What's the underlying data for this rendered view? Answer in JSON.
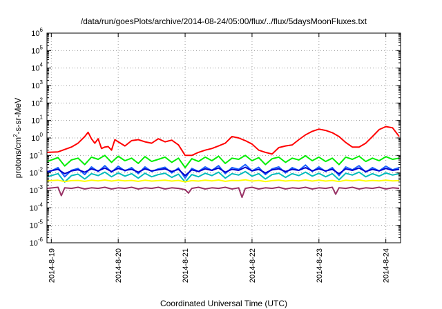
{
  "chart_data": {
    "type": "line",
    "title": "/data/run/goesPlots/archive/2014-08-24/05:00/flux/../flux/5daysMoonFluxes.txt",
    "xlabel": "Coordinated Universal Time (UTC)",
    "ylabel": "protons/cm2-s-sr-MeV",
    "ylabel_parts": {
      "before": "protons/cm",
      "sup": "2",
      "after": "-s-sr-MeV"
    },
    "yscale": "log",
    "ylim": [
      1e-06,
      1000000.0
    ],
    "xlim": [
      -0.065,
      5.22
    ],
    "grid": true,
    "x_ticks": [
      {
        "x": 0,
        "label": "2014-8-19"
      },
      {
        "x": 1,
        "label": "2014-8-20"
      },
      {
        "x": 2,
        "label": "2014-8-21"
      },
      {
        "x": 3,
        "label": "2014-8-22"
      },
      {
        "x": 4,
        "label": "2014-8-23"
      },
      {
        "x": 5,
        "label": "2014-8-24"
      }
    ],
    "y_ticks": [
      {
        "exp": -6,
        "base": "10",
        "sup": "-6"
      },
      {
        "exp": -5,
        "base": "10",
        "sup": "-5"
      },
      {
        "exp": -4,
        "base": "10",
        "sup": "-4"
      },
      {
        "exp": -3,
        "base": "10",
        "sup": "-3"
      },
      {
        "exp": -2,
        "base": "10",
        "sup": "-2"
      },
      {
        "exp": -1,
        "base": "10",
        "sup": "-1"
      },
      {
        "exp": 0,
        "base": "10",
        "sup": "0"
      },
      {
        "exp": 1,
        "base": "10",
        "sup": "1"
      },
      {
        "exp": 2,
        "base": "10",
        "sup": "2"
      },
      {
        "exp": 3,
        "base": "10",
        "sup": "3"
      },
      {
        "exp": 4,
        "base": "10",
        "sup": "4"
      },
      {
        "exp": 5,
        "base": "10",
        "sup": "5"
      },
      {
        "exp": 6,
        "base": "10",
        "sup": "6"
      }
    ],
    "series": [
      {
        "color": "#ff0000",
        "x": [
          -0.06,
          0.1,
          0.2,
          0.3,
          0.4,
          0.5,
          0.55,
          0.6,
          0.65,
          0.7,
          0.75,
          0.8,
          0.85,
          0.9,
          0.95,
          1.0,
          1.1,
          1.2,
          1.3,
          1.4,
          1.5,
          1.6,
          1.7,
          1.8,
          1.9,
          2.0,
          2.1,
          2.2,
          2.3,
          2.4,
          2.5,
          2.6,
          2.7,
          2.8,
          2.9,
          3.0,
          3.1,
          3.2,
          3.3,
          3.4,
          3.5,
          3.6,
          3.7,
          3.8,
          3.9,
          4.0,
          4.1,
          4.2,
          4.3,
          4.4,
          4.5,
          4.6,
          4.7,
          4.8,
          4.9,
          5.0,
          5.1,
          5.2
        ],
        "y": [
          0.15,
          0.16,
          0.22,
          0.3,
          0.5,
          1.2,
          2.1,
          0.9,
          0.5,
          0.9,
          0.25,
          0.3,
          0.32,
          0.2,
          0.8,
          0.6,
          0.35,
          0.7,
          0.8,
          0.6,
          0.5,
          0.9,
          0.6,
          0.75,
          0.4,
          0.1,
          0.1,
          0.15,
          0.2,
          0.25,
          0.35,
          0.5,
          1.2,
          1.0,
          0.7,
          0.45,
          0.2,
          0.15,
          0.12,
          0.28,
          0.35,
          0.4,
          0.8,
          1.5,
          2.4,
          3.2,
          2.7,
          2.0,
          1.2,
          0.55,
          0.3,
          0.3,
          0.5,
          1.2,
          3.0,
          4.5,
          3.8,
          1.2
        ]
      },
      {
        "color": "#00ee00",
        "x": [
          -0.06,
          0.1,
          0.2,
          0.3,
          0.4,
          0.5,
          0.6,
          0.7,
          0.8,
          0.9,
          1.0,
          1.1,
          1.2,
          1.3,
          1.4,
          1.5,
          1.6,
          1.7,
          1.8,
          1.9,
          2.0,
          2.1,
          2.2,
          2.3,
          2.4,
          2.5,
          2.6,
          2.7,
          2.8,
          2.9,
          3.0,
          3.1,
          3.2,
          3.3,
          3.4,
          3.5,
          3.6,
          3.7,
          3.8,
          3.9,
          4.0,
          4.1,
          4.2,
          4.3,
          4.4,
          4.5,
          4.6,
          4.7,
          4.8,
          4.9,
          5.0,
          5.1,
          5.2
        ],
        "y": [
          0.045,
          0.075,
          0.025,
          0.055,
          0.07,
          0.03,
          0.08,
          0.06,
          0.1,
          0.04,
          0.09,
          0.05,
          0.07,
          0.035,
          0.085,
          0.045,
          0.06,
          0.08,
          0.04,
          0.07,
          0.02,
          0.065,
          0.045,
          0.08,
          0.05,
          0.09,
          0.035,
          0.07,
          0.06,
          0.1,
          0.05,
          0.075,
          0.03,
          0.065,
          0.08,
          0.04,
          0.07,
          0.055,
          0.095,
          0.05,
          0.08,
          0.045,
          0.07,
          0.03,
          0.08,
          0.06,
          0.09,
          0.045,
          0.07,
          0.05,
          0.085,
          0.06,
          0.07
        ]
      },
      {
        "color": "#00bbbb",
        "x": [
          -0.06,
          0.1,
          0.2,
          0.3,
          0.4,
          0.5,
          0.6,
          0.7,
          0.8,
          0.9,
          1.0,
          1.1,
          1.2,
          1.3,
          1.4,
          1.5,
          1.6,
          1.7,
          1.8,
          1.9,
          2.0,
          2.1,
          2.2,
          2.3,
          2.4,
          2.5,
          2.6,
          2.7,
          2.8,
          2.9,
          3.0,
          3.1,
          3.2,
          3.3,
          3.4,
          3.5,
          3.6,
          3.7,
          3.8,
          3.9,
          4.0,
          4.1,
          4.2,
          4.3,
          4.4,
          4.5,
          4.6,
          4.7,
          4.8,
          4.9,
          5.0,
          5.1,
          5.2
        ],
        "y": [
          0.006,
          0.009,
          0.003,
          0.007,
          0.0085,
          0.0045,
          0.009,
          0.007,
          0.011,
          0.006,
          0.01,
          0.0065,
          0.009,
          0.005,
          0.0095,
          0.006,
          0.008,
          0.0095,
          0.0055,
          0.0085,
          0.003,
          0.008,
          0.006,
          0.0095,
          0.007,
          0.011,
          0.005,
          0.009,
          0.0075,
          0.012,
          0.0065,
          0.009,
          0.0045,
          0.008,
          0.0095,
          0.0055,
          0.009,
          0.007,
          0.011,
          0.0065,
          0.0095,
          0.006,
          0.009,
          0.004,
          0.0095,
          0.0075,
          0.011,
          0.006,
          0.009,
          0.0065,
          0.01,
          0.0075,
          0.009
        ]
      },
      {
        "color": "#1a60ff",
        "x": [
          -0.06,
          0.1,
          0.2,
          0.3,
          0.4,
          0.5,
          0.6,
          0.7,
          0.8,
          0.9,
          1.0,
          1.1,
          1.2,
          1.3,
          1.4,
          1.5,
          1.6,
          1.7,
          1.8,
          1.9,
          2.0,
          2.1,
          2.2,
          2.3,
          2.4,
          2.5,
          2.6,
          2.7,
          2.8,
          2.9,
          3.0,
          3.1,
          3.2,
          3.3,
          3.4,
          3.5,
          3.6,
          3.7,
          3.8,
          3.9,
          4.0,
          4.1,
          4.2,
          4.3,
          4.4,
          4.5,
          4.6,
          4.7,
          4.8,
          4.9,
          5.0,
          5.1,
          5.2
        ],
        "y": [
          0.01,
          0.02,
          0.006,
          0.014,
          0.018,
          0.008,
          0.022,
          0.012,
          0.026,
          0.011,
          0.024,
          0.013,
          0.02,
          0.009,
          0.022,
          0.012,
          0.017,
          0.021,
          0.01,
          0.019,
          0.005,
          0.018,
          0.012,
          0.022,
          0.014,
          0.026,
          0.009,
          0.02,
          0.016,
          0.03,
          0.013,
          0.021,
          0.008,
          0.017,
          0.022,
          0.01,
          0.02,
          0.014,
          0.028,
          0.012,
          0.022,
          0.012,
          0.02,
          0.007,
          0.022,
          0.015,
          0.026,
          0.011,
          0.02,
          0.013,
          0.024,
          0.015,
          0.02
        ]
      },
      {
        "color": "#0000cc",
        "x": [
          -0.06,
          0.1,
          0.2,
          0.3,
          0.4,
          0.5,
          0.6,
          0.7,
          0.8,
          0.9,
          1.0,
          1.1,
          1.2,
          1.3,
          1.4,
          1.5,
          1.6,
          1.7,
          1.8,
          1.9,
          2.0,
          2.1,
          2.2,
          2.3,
          2.4,
          2.5,
          2.6,
          2.7,
          2.8,
          2.9,
          3.0,
          3.1,
          3.2,
          3.3,
          3.4,
          3.5,
          3.6,
          3.7,
          3.8,
          3.9,
          4.0,
          4.1,
          4.2,
          4.3,
          4.4,
          4.5,
          4.6,
          4.7,
          4.8,
          4.9,
          5.0,
          5.1,
          5.2
        ],
        "y": [
          0.012,
          0.016,
          0.009,
          0.013,
          0.015,
          0.011,
          0.017,
          0.013,
          0.019,
          0.012,
          0.018,
          0.014,
          0.016,
          0.011,
          0.017,
          0.013,
          0.015,
          0.017,
          0.012,
          0.016,
          0.007,
          0.015,
          0.012,
          0.017,
          0.014,
          0.019,
          0.011,
          0.016,
          0.014,
          0.021,
          0.013,
          0.016,
          0.01,
          0.015,
          0.017,
          0.012,
          0.016,
          0.014,
          0.02,
          0.013,
          0.017,
          0.013,
          0.016,
          0.009,
          0.017,
          0.014,
          0.019,
          0.012,
          0.016,
          0.013,
          0.018,
          0.014,
          0.016
        ]
      },
      {
        "color": "#ffff00",
        "x": [
          -0.06,
          0.1,
          0.2,
          0.3,
          0.4,
          0.5,
          0.6,
          0.7,
          0.8,
          0.9,
          1.0,
          1.1,
          1.2,
          1.3,
          1.4,
          1.5,
          1.6,
          1.7,
          1.8,
          1.9,
          2.0,
          2.1,
          2.2,
          2.3,
          2.4,
          2.5,
          2.6,
          2.7,
          2.8,
          2.9,
          3.0,
          3.1,
          3.2,
          3.3,
          3.4,
          3.5,
          3.6,
          3.7,
          3.8,
          3.9,
          4.0,
          4.1,
          4.2,
          4.3,
          4.4,
          4.5,
          4.6,
          4.7,
          4.8,
          4.9,
          5.0,
          5.1,
          5.2
        ],
        "y": [
          0.0035,
          0.0038,
          0.0032,
          0.0036,
          0.0037,
          0.0033,
          0.0038,
          0.0035,
          0.0039,
          0.0034,
          0.0038,
          0.0035,
          0.0037,
          0.0033,
          0.0038,
          0.0034,
          0.0036,
          0.0038,
          0.0034,
          0.0037,
          0.0031,
          0.0036,
          0.0034,
          0.0038,
          0.0035,
          0.0039,
          0.0033,
          0.0037,
          0.0036,
          0.004,
          0.0034,
          0.0037,
          0.0032,
          0.0036,
          0.0038,
          0.0034,
          0.0037,
          0.0035,
          0.0039,
          0.0034,
          0.0038,
          0.0034,
          0.0037,
          0.0032,
          0.0038,
          0.0035,
          0.0039,
          0.0034,
          0.0037,
          0.0035,
          0.0038,
          0.0035,
          0.0036
        ]
      },
      {
        "color": "#993366",
        "x": [
          -0.06,
          0.1,
          0.15,
          0.2,
          0.3,
          0.4,
          0.5,
          0.6,
          0.7,
          0.8,
          0.9,
          1.0,
          1.1,
          1.2,
          1.3,
          1.4,
          1.5,
          1.6,
          1.7,
          1.8,
          1.9,
          2.0,
          2.05,
          2.1,
          2.2,
          2.3,
          2.4,
          2.5,
          2.6,
          2.7,
          2.8,
          2.85,
          2.9,
          3.0,
          3.1,
          3.2,
          3.3,
          3.4,
          3.5,
          3.6,
          3.7,
          3.8,
          3.9,
          4.0,
          4.1,
          4.2,
          4.25,
          4.3,
          4.4,
          4.5,
          4.6,
          4.7,
          4.8,
          4.9,
          5.0,
          5.1,
          5.2
        ],
        "y": [
          0.0013,
          0.0015,
          0.0005,
          0.0014,
          0.0013,
          0.0015,
          0.0012,
          0.0014,
          0.0013,
          0.0015,
          0.0012,
          0.0014,
          0.0013,
          0.0015,
          0.0012,
          0.0014,
          0.0013,
          0.0015,
          0.0012,
          0.0014,
          0.0013,
          0.0011,
          0.0007,
          0.0013,
          0.0015,
          0.0012,
          0.0014,
          0.0013,
          0.0015,
          0.0012,
          0.0014,
          0.0004,
          0.0013,
          0.0015,
          0.0012,
          0.0014,
          0.0013,
          0.0015,
          0.0012,
          0.0014,
          0.0013,
          0.0015,
          0.0012,
          0.0014,
          0.0013,
          0.0015,
          0.0006,
          0.0014,
          0.0013,
          0.0015,
          0.0012,
          0.0014,
          0.0013,
          0.0015,
          0.0012,
          0.0014,
          0.0013
        ]
      }
    ]
  }
}
